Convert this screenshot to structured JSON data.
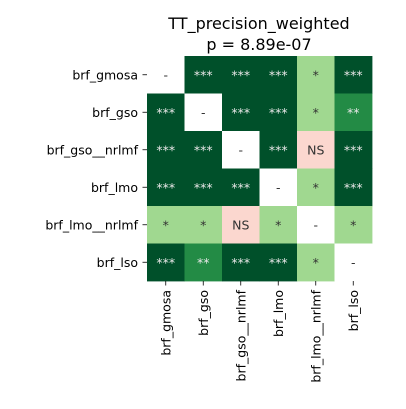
{
  "chart_data": {
    "type": "heatmap",
    "title": "TT_precision_weighted",
    "subtitle": "p = 8.89e-07",
    "rows": [
      "brf_gmosa",
      "brf_gso",
      "brf_gso__nrlmf",
      "brf_lmo",
      "brf_lmo__nrlmf",
      "brf_lso"
    ],
    "columns": [
      "brf_gmosa",
      "brf_gso",
      "brf_gso__nrlmf",
      "brf_lmo",
      "brf_lmo__nrlmf",
      "brf_lso"
    ],
    "cells": [
      [
        "-",
        "***",
        "***",
        "***",
        "*",
        "***"
      ],
      [
        "***",
        "-",
        "***",
        "***",
        "*",
        "**"
      ],
      [
        "***",
        "***",
        "-",
        "***",
        "NS",
        "***"
      ],
      [
        "***",
        "***",
        "***",
        "-",
        "*",
        "***"
      ],
      [
        "*",
        "*",
        "NS",
        "*",
        "-",
        "*"
      ],
      [
        "***",
        "**",
        "***",
        "***",
        "*",
        "-"
      ]
    ],
    "colors": {
      "***": "#00502a",
      "**": "#238b45",
      "*": "#a0d890",
      "NS": "#fbd7cf",
      "-": "#ffffff"
    },
    "text_colors": {
      "***": "#e8e8e8",
      "**": "#e8e8e8",
      "*": "#333333",
      "NS": "#333333",
      "-": "#333333"
    }
  }
}
